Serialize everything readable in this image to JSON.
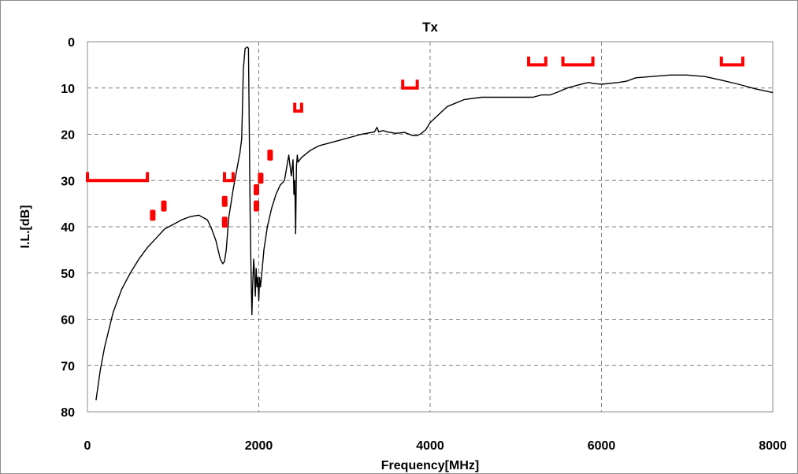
{
  "chart_data": {
    "type": "line",
    "title": "Tx",
    "xlabel": "Frequency[MHz]",
    "ylabel": "I.L.[dB]",
    "xlim": [
      0,
      8000
    ],
    "ylim": [
      0,
      80
    ],
    "y_inverted": true,
    "grid": true,
    "legend": "none",
    "x_ticks": [
      "0",
      "2000",
      "4000",
      "6000",
      "8000"
    ],
    "y_ticks": [
      "0",
      "10",
      "20",
      "30",
      "40",
      "50",
      "60",
      "70",
      "80"
    ],
    "colors": {
      "curve": "#000000",
      "spec": "#ff0000",
      "grid": "#7f7f7f"
    },
    "series": [
      {
        "role": "measured-insertion-loss",
        "x": [
          100,
          150,
          200,
          300,
          400,
          500,
          600,
          700,
          800,
          900,
          1000,
          1100,
          1200,
          1300,
          1400,
          1450,
          1500,
          1550,
          1580,
          1600,
          1620,
          1650,
          1700,
          1750,
          1780,
          1800,
          1810,
          1820,
          1840,
          1860,
          1870,
          1880,
          1890,
          1900,
          1910,
          1920,
          1930,
          1940,
          1950,
          1960,
          1970,
          1980,
          1990,
          2000,
          2010,
          2020,
          2040,
          2060,
          2100,
          2150,
          2200,
          2250,
          2300,
          2350,
          2360,
          2380,
          2400,
          2410,
          2420,
          2430,
          2440,
          2450,
          2460,
          2500,
          2600,
          2700,
          2800,
          3000,
          3200,
          3350,
          3380,
          3400,
          3450,
          3500,
          3600,
          3700,
          3800,
          3850,
          3900,
          3950,
          4000,
          4200,
          4400,
          4600,
          4800,
          5000,
          5200,
          5300,
          5400,
          5500,
          5600,
          5700,
          5800,
          5850,
          5900,
          6000,
          6200,
          6300,
          6400,
          6600,
          6800,
          7000,
          7200,
          7400,
          7600,
          7800,
          8000
        ],
        "y": [
          77.5,
          71,
          66,
          58.5,
          53.5,
          50,
          47,
          44.5,
          42.5,
          40.5,
          39.5,
          38.5,
          37.8,
          37.5,
          38.5,
          40.5,
          43,
          47,
          48,
          47.5,
          45,
          38,
          32,
          27,
          24,
          21,
          14,
          6,
          1.5,
          1.2,
          1.2,
          1.5,
          20,
          38,
          50,
          59,
          52,
          47,
          50,
          55,
          49,
          53,
          51,
          56,
          51,
          53,
          49,
          45,
          40,
          36,
          33,
          31,
          30,
          24.5,
          26,
          29,
          25.5,
          33,
          30,
          41.5,
          27,
          24.5,
          26,
          25,
          23.5,
          22.5,
          22,
          21,
          20,
          19.5,
          18.5,
          19.5,
          19.2,
          19.5,
          19.8,
          19.6,
          20.3,
          20.3,
          19.8,
          19,
          17.5,
          14,
          12.5,
          12,
          12,
          12,
          12,
          11.5,
          11.5,
          10.8,
          10,
          9.5,
          9,
          8.8,
          9,
          9.2,
          8.8,
          8.5,
          7.8,
          7.5,
          7.2,
          7.2,
          7.5,
          8.3,
          9.2,
          10.2,
          11
        ]
      }
    ],
    "spec_marks": [
      {
        "x1": 0,
        "x2": 700,
        "y": 30,
        "h": 1.8
      },
      {
        "x1": 5150,
        "x2": 5350,
        "y": 5,
        "h": 1.8
      },
      {
        "x1": 5550,
        "x2": 5900,
        "y": 5,
        "h": 1.8
      },
      {
        "x1": 7400,
        "x2": 7650,
        "y": 5,
        "h": 1.8
      },
      {
        "x1": 3680,
        "x2": 3850,
        "y": 10,
        "h": 1.8
      },
      {
        "x1": 2420,
        "x2": 2500,
        "y": 15,
        "h": 1.8
      },
      {
        "x1": 1600,
        "x2": 1700,
        "y": 30,
        "h": 1.8
      },
      {
        "x1": 730,
        "x2": 780,
        "y": 37.5,
        "h": 0
      },
      {
        "x1": 860,
        "x2": 880,
        "y": 35.5,
        "h": 0
      },
      {
        "x1": 1570,
        "x2": 1600,
        "y": 34.5,
        "h": 0
      },
      {
        "x1": 1570,
        "x2": 1600,
        "y": 39,
        "h": 0
      },
      {
        "x1": 1940,
        "x2": 1980,
        "y": 32,
        "h": 0
      },
      {
        "x1": 1940,
        "x2": 1980,
        "y": 35.5,
        "h": 0
      },
      {
        "x1": 1990,
        "x2": 2030,
        "y": 29.5,
        "h": 0
      },
      {
        "x1": 2100,
        "x2": 2160,
        "y": 24.5,
        "h": 0
      }
    ]
  }
}
